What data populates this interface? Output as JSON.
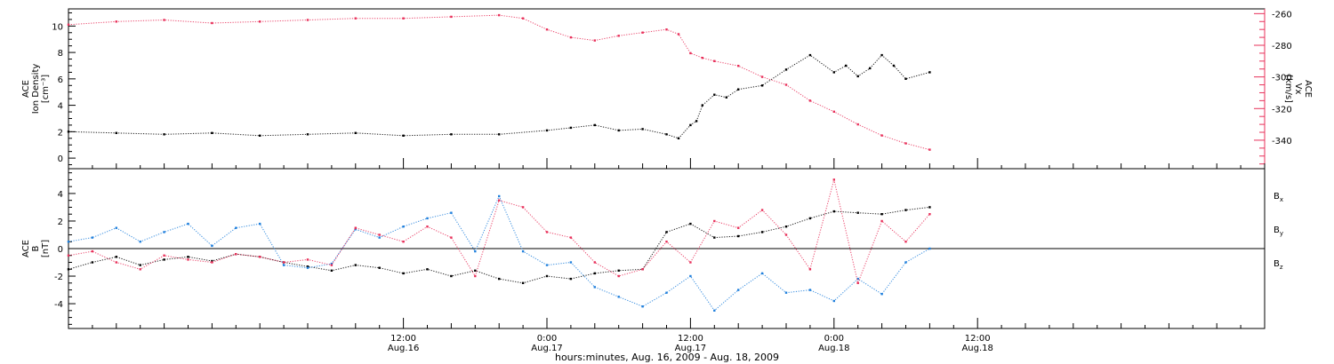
{
  "colors": {
    "ion_density": "#000000",
    "vx": "#e8305a",
    "bx": "#000000",
    "by": "#1f7fdc",
    "bz": "#e8305a",
    "axis": "#000000"
  },
  "x_axis": {
    "title": "hours:minutes, Aug. 16, 2009 - Aug. 18, 2009",
    "range_hours": [
      -16,
      84
    ],
    "ticks": [
      {
        "hour": 12,
        "time": "12:00",
        "date": "Aug.16"
      },
      {
        "hour": 24,
        "time": "0:00",
        "date": "Aug.17"
      },
      {
        "hour": 36,
        "time": "12:00",
        "date": "Aug.17"
      },
      {
        "hour": 48,
        "time": "0:00",
        "date": "Aug.18"
      },
      {
        "hour": 60,
        "time": "12:00",
        "date": "Aug.18"
      }
    ]
  },
  "chart_data": [
    {
      "type": "scatter",
      "panel": "top",
      "ylabel_left": {
        "line1": "ACE",
        "line2": "Ion Density",
        "unit": "[cm⁻³]"
      },
      "ylabel_right": {
        "line1": "ACE",
        "line2": "Vx",
        "unit": "[km/s]"
      },
      "ylim_left": [
        -0.8,
        11.3
      ],
      "ylim_right": [
        -358,
        -257
      ],
      "yticks_left": [
        0,
        2,
        4,
        6,
        8,
        10
      ],
      "yticks_right": [
        -340,
        -320,
        -300,
        -280,
        -260
      ],
      "series": [
        {
          "axis": "left",
          "color_key": "ion_density",
          "x_hours": [
            -16,
            -12,
            -8,
            -4,
            0,
            4,
            8,
            12,
            16,
            20,
            24,
            26,
            28,
            30,
            32,
            34,
            35,
            36,
            36.5,
            37,
            38,
            39,
            40,
            42,
            44,
            46,
            48,
            49,
            50,
            51,
            52,
            53,
            54,
            56
          ],
          "values": [
            2.0,
            1.9,
            1.8,
            1.9,
            1.7,
            1.8,
            1.9,
            1.7,
            1.8,
            1.8,
            2.1,
            2.3,
            2.5,
            2.1,
            2.2,
            1.8,
            1.5,
            2.5,
            2.8,
            4.0,
            4.8,
            4.6,
            5.2,
            5.5,
            6.7,
            7.8,
            6.5,
            7.0,
            6.2,
            6.8,
            7.8,
            7.0,
            6.0,
            6.5
          ]
        },
        {
          "axis": "right",
          "color_key": "vx",
          "x_hours": [
            -16,
            -12,
            -8,
            -4,
            0,
            4,
            8,
            12,
            16,
            20,
            22,
            24,
            26,
            28,
            30,
            32,
            34,
            35,
            36,
            37,
            38,
            40,
            42,
            44,
            46,
            48,
            50,
            52,
            54,
            56
          ],
          "values": [
            -267,
            -265,
            -264,
            -266,
            -265,
            -264,
            -263,
            -263,
            -262,
            -261,
            -263,
            -270,
            -275,
            -277,
            -274,
            -272,
            -270,
            -273,
            -285,
            -288,
            -290,
            -293,
            -300,
            -305,
            -315,
            -322,
            -330,
            -337,
            -342,
            -346
          ]
        }
      ]
    },
    {
      "type": "scatter",
      "panel": "bottom",
      "ylabel_left": {
        "line1": "ACE",
        "line2": "B",
        "unit": "[nT]"
      },
      "ylim": [
        -5.8,
        5.8
      ],
      "yticks": [
        -4,
        -2,
        0,
        2,
        4
      ],
      "legend": [
        {
          "label": "B",
          "sub": "x",
          "color_key": "bx"
        },
        {
          "label": "B",
          "sub": "y",
          "color_key": "by"
        },
        {
          "label": "B",
          "sub": "z",
          "color_key": "bz"
        }
      ],
      "series": [
        {
          "name": "Bx",
          "color_key": "bx",
          "x_hours": [
            -16,
            -14,
            -12,
            -10,
            -8,
            -6,
            -4,
            -2,
            0,
            2,
            4,
            6,
            8,
            10,
            12,
            14,
            16,
            18,
            20,
            22,
            24,
            26,
            28,
            30,
            32,
            34,
            36,
            38,
            40,
            42,
            44,
            46,
            48,
            50,
            52,
            54,
            56
          ],
          "values": [
            -1.5,
            -1.0,
            -0.6,
            -1.2,
            -0.8,
            -0.6,
            -0.9,
            -0.4,
            -0.6,
            -1.0,
            -1.3,
            -1.6,
            -1.2,
            -1.4,
            -1.8,
            -1.5,
            -2.0,
            -1.6,
            -2.2,
            -2.5,
            -2.0,
            -2.2,
            -1.8,
            -1.6,
            -1.5,
            1.2,
            1.8,
            0.8,
            0.9,
            1.2,
            1.6,
            2.2,
            2.7,
            2.6,
            2.5,
            2.8,
            3.0
          ]
        },
        {
          "name": "By",
          "color_key": "by",
          "x_hours": [
            -16,
            -14,
            -12,
            -10,
            -8,
            -6,
            -4,
            -2,
            0,
            2,
            4,
            6,
            8,
            10,
            12,
            14,
            16,
            18,
            20,
            22,
            24,
            26,
            28,
            30,
            32,
            34,
            36,
            38,
            40,
            42,
            44,
            46,
            48,
            50,
            52,
            54,
            56
          ],
          "values": [
            0.5,
            0.8,
            1.5,
            0.5,
            1.2,
            1.8,
            0.2,
            1.5,
            1.8,
            -1.2,
            -1.4,
            -1.1,
            1.4,
            0.8,
            1.6,
            2.2,
            2.6,
            -0.2,
            3.8,
            -0.2,
            -1.2,
            -1.0,
            -2.8,
            -3.5,
            -4.2,
            -3.2,
            -2.0,
            -4.5,
            -3.0,
            -1.8,
            -3.2,
            -3.0,
            -3.8,
            -2.2,
            -3.3,
            -1.0,
            0.0
          ]
        },
        {
          "name": "Bz",
          "color_key": "bz",
          "x_hours": [
            -16,
            -14,
            -12,
            -10,
            -8,
            -6,
            -4,
            -2,
            0,
            2,
            4,
            6,
            8,
            10,
            12,
            14,
            16,
            18,
            20,
            22,
            24,
            26,
            28,
            30,
            32,
            34,
            36,
            38,
            40,
            42,
            44,
            46,
            48,
            50,
            52,
            54,
            56
          ],
          "values": [
            -0.5,
            -0.2,
            -1.0,
            -1.5,
            -0.5,
            -0.8,
            -1.0,
            -0.4,
            -0.6,
            -1.0,
            -0.8,
            -1.2,
            1.5,
            1.0,
            0.5,
            1.6,
            0.8,
            -2.0,
            3.5,
            3.0,
            1.2,
            0.8,
            -1.0,
            -2.0,
            -1.5,
            0.5,
            -1.0,
            2.0,
            1.5,
            2.8,
            1.0,
            -1.5,
            5.0,
            -2.5,
            2.0,
            0.5,
            2.5
          ]
        }
      ]
    }
  ]
}
